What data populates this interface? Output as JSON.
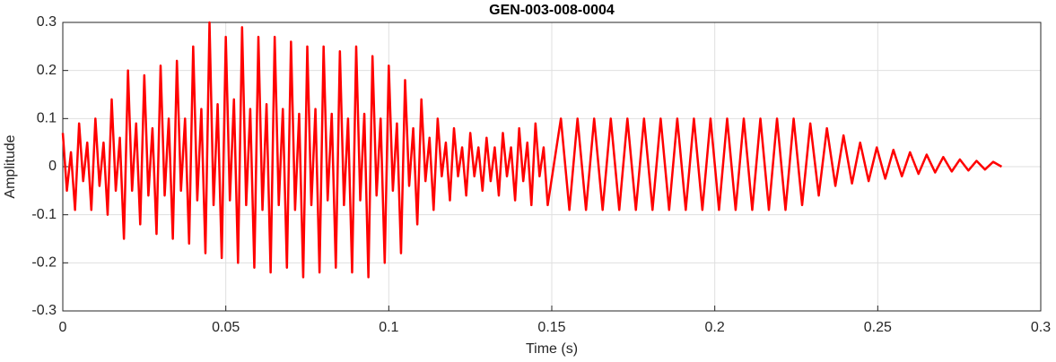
{
  "chart_data": {
    "type": "line",
    "title": "GEN-003-008-0004",
    "xlabel": "Time (s)",
    "ylabel": "Amplitude",
    "color": "#ff0000",
    "grid": true,
    "xlim": [
      0,
      0.3
    ],
    "xticks": [
      0,
      0.05,
      0.1,
      0.15,
      0.2,
      0.25,
      0.3
    ],
    "ylim": [
      -0.3,
      0.3
    ],
    "yticks": [
      -0.3,
      -0.2,
      -0.1,
      0,
      0.1,
      0.2,
      0.3
    ],
    "x": [
      0,
      0.00125,
      0.0025,
      0.00375,
      0.005,
      0.00625,
      0.0075,
      0.00875,
      0.01,
      0.01125,
      0.0125,
      0.01375,
      0.015,
      0.01625,
      0.0175,
      0.01875,
      0.02,
      0.02125,
      0.0225,
      0.02375,
      0.025,
      0.02625,
      0.0275,
      0.02875,
      0.03,
      0.03125,
      0.0325,
      0.03375,
      0.035,
      0.03625,
      0.0375,
      0.03875,
      0.04,
      0.04125,
      0.0425,
      0.04375,
      0.045,
      0.04625,
      0.0475,
      0.04875,
      0.05,
      0.05125,
      0.0525,
      0.05375,
      0.055,
      0.05625,
      0.0575,
      0.05875,
      0.06,
      0.06125,
      0.0625,
      0.06375,
      0.065,
      0.06625,
      0.0675,
      0.06875,
      0.07,
      0.07125,
      0.0725,
      0.07375,
      0.075,
      0.07625,
      0.0775,
      0.07875,
      0.08,
      0.08125,
      0.0825,
      0.08375,
      0.085,
      0.08625,
      0.0875,
      0.08875,
      0.09,
      0.09125,
      0.0925,
      0.09375,
      0.095,
      0.09625,
      0.0975,
      0.09875,
      0.1,
      0.10125,
      0.1025,
      0.10375,
      0.105,
      0.10625,
      0.1075,
      0.10875,
      0.11,
      0.11125,
      0.1125,
      0.11375,
      0.115,
      0.11625,
      0.1175,
      0.11875,
      0.12,
      0.12125,
      0.1225,
      0.12375,
      0.125,
      0.12625,
      0.1275,
      0.12875,
      0.13,
      0.13125,
      0.1325,
      0.13375,
      0.135,
      0.13625,
      0.1375,
      0.13875,
      0.14,
      0.14125,
      0.1425,
      0.14375,
      0.145,
      0.14625,
      0.1475,
      0.14875,
      0.1528,
      0.1554,
      0.1579,
      0.1605,
      0.163,
      0.1656,
      0.1681,
      0.1707,
      0.1732,
      0.1758,
      0.1783,
      0.1809,
      0.1834,
      0.186,
      0.1885,
      0.1911,
      0.1936,
      0.1962,
      0.1987,
      0.2013,
      0.2038,
      0.2064,
      0.2089,
      0.2115,
      0.214,
      0.2166,
      0.2191,
      0.2217,
      0.2242,
      0.2268,
      0.2293,
      0.2319,
      0.2344,
      0.237,
      0.2395,
      0.2421,
      0.2446,
      0.2472,
      0.2497,
      0.2523,
      0.2548,
      0.2574,
      0.2599,
      0.2625,
      0.265,
      0.2676,
      0.2701,
      0.2727,
      0.2752,
      0.2778,
      0.2803,
      0.2829,
      0.2854,
      0.288
    ],
    "values": [
      0.07,
      -0.05,
      0.03,
      -0.09,
      0.09,
      -0.03,
      0.05,
      -0.09,
      0.1,
      -0.04,
      0.05,
      -0.1,
      0.14,
      -0.05,
      0.06,
      -0.15,
      0.2,
      -0.05,
      0.09,
      -0.12,
      0.19,
      -0.06,
      0.08,
      -0.14,
      0.21,
      -0.06,
      0.1,
      -0.15,
      0.22,
      -0.05,
      0.1,
      -0.16,
      0.25,
      -0.07,
      0.12,
      -0.18,
      0.3,
      -0.08,
      0.13,
      -0.19,
      0.27,
      -0.07,
      0.14,
      -0.2,
      0.29,
      -0.08,
      0.12,
      -0.21,
      0.27,
      -0.09,
      0.13,
      -0.22,
      0.27,
      -0.08,
      0.12,
      -0.21,
      0.26,
      -0.09,
      0.11,
      -0.23,
      0.25,
      -0.08,
      0.12,
      -0.22,
      0.25,
      -0.07,
      0.11,
      -0.21,
      0.24,
      -0.08,
      0.1,
      -0.22,
      0.25,
      -0.07,
      0.11,
      -0.23,
      0.23,
      -0.06,
      0.1,
      -0.2,
      0.21,
      -0.05,
      0.09,
      -0.18,
      0.18,
      -0.04,
      0.08,
      -0.12,
      0.14,
      -0.03,
      0.06,
      -0.09,
      0.1,
      -0.02,
      0.05,
      -0.07,
      0.08,
      -0.02,
      0.04,
      -0.06,
      0.07,
      -0.02,
      0.04,
      -0.05,
      0.06,
      -0.03,
      0.04,
      -0.06,
      0.07,
      -0.02,
      0.04,
      -0.07,
      0.08,
      -0.03,
      0.05,
      -0.08,
      0.09,
      -0.02,
      0.04,
      -0.08,
      0.1,
      -0.09,
      0.1,
      -0.09,
      0.1,
      -0.09,
      0.1,
      -0.09,
      0.1,
      -0.09,
      0.1,
      -0.09,
      0.1,
      -0.09,
      0.1,
      -0.09,
      0.1,
      -0.09,
      0.1,
      -0.09,
      0.1,
      -0.09,
      0.1,
      -0.09,
      0.1,
      -0.09,
      0.1,
      -0.09,
      0.1,
      -0.08,
      0.09,
      -0.06,
      0.08,
      -0.04,
      0.065,
      -0.035,
      0.05,
      -0.03,
      0.04,
      -0.025,
      0.035,
      -0.02,
      0.03,
      -0.015,
      0.025,
      -0.012,
      0.02,
      -0.01,
      0.015,
      -0.008,
      0.012,
      -0.006,
      0.01,
      0
    ]
  }
}
